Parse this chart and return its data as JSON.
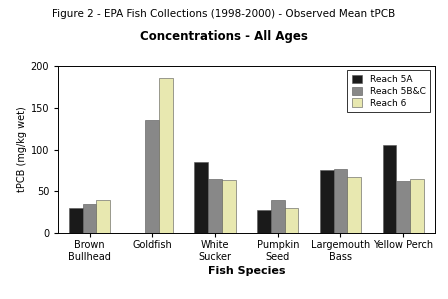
{
  "title_line1": "Figure 2 - EPA Fish Collections (1998-2000) - Observed Mean tPCB",
  "title_line2": "Concentrations - All Ages",
  "categories": [
    "Brown\nBullhead",
    "Goldfish",
    "White\nSucker",
    "Pumpkin\nSeed",
    "Largemouth\nBass",
    "Yellow Perch"
  ],
  "xlabel": "Fish Species",
  "ylabel": "tPCB (mg/kg wet)",
  "ylim": [
    0,
    200
  ],
  "yticks": [
    0,
    50,
    100,
    150,
    200
  ],
  "reach5A": [
    30,
    0,
    85,
    28,
    75,
    105
  ],
  "reach5BC": [
    35,
    135,
    65,
    40,
    77,
    62
  ],
  "reach6": [
    40,
    185,
    63,
    30,
    67,
    65
  ],
  "color_5A": "#1a1a1a",
  "color_5BC": "#888888",
  "color_6": "#e8e8b0",
  "legend_labels": [
    "Reach 5A",
    "Reach 5B&C",
    "Reach 6"
  ],
  "bar_width": 0.22,
  "figure_bg": "#ffffff",
  "plot_bg": "#ffffff",
  "title1_fontsize": 7.5,
  "title2_fontsize": 8.5,
  "axis_label_fontsize": 8,
  "tick_fontsize": 7,
  "legend_fontsize": 6.5
}
